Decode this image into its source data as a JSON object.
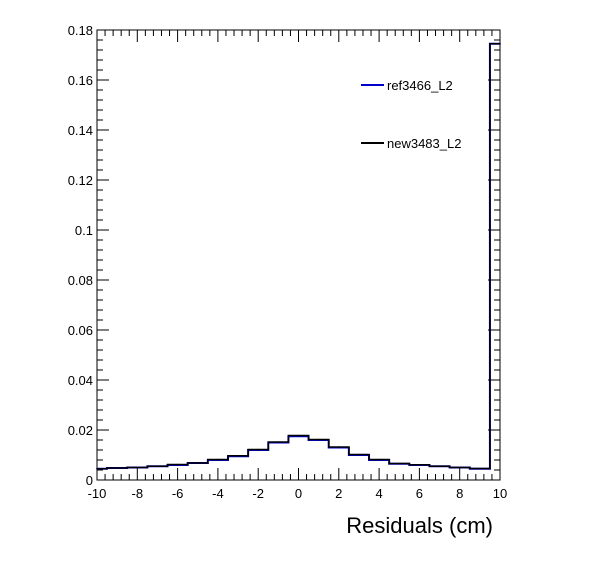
{
  "chart_data": {
    "type": "line",
    "title": "",
    "xlabel": "Residuals (cm)",
    "ylabel": "",
    "xlim": [
      -10,
      10
    ],
    "ylim": [
      0,
      0.18
    ],
    "xticks": [
      -10,
      -8,
      -6,
      -4,
      -2,
      0,
      2,
      4,
      6,
      8,
      10
    ],
    "yticks": [
      0,
      0.02,
      0.04,
      0.06,
      0.08,
      0.1,
      0.12,
      0.14,
      0.16,
      0.18
    ],
    "xtick_labels": [
      "-10",
      "-8",
      "-6",
      "-4",
      "-2",
      "0",
      "2",
      "4",
      "6",
      "8",
      "10"
    ],
    "ytick_labels": [
      "0",
      "0.02",
      "0.04",
      "0.06",
      "0.08",
      "0.1",
      "0.12",
      "0.14",
      "0.16",
      "0.18"
    ],
    "grid": false,
    "legend_position": "top-right",
    "x": [
      -10,
      -9,
      -8,
      -7,
      -6,
      -5,
      -4,
      -3,
      -2,
      -1,
      0,
      1,
      2,
      3,
      4,
      5,
      6,
      7,
      8,
      9,
      10
    ],
    "series": [
      {
        "name": "ref3466_L2",
        "color": "#0000cc",
        "values": [
          0.0045,
          0.0048,
          0.005,
          0.0055,
          0.006,
          0.0068,
          0.008,
          0.0095,
          0.012,
          0.015,
          0.0175,
          0.016,
          0.013,
          0.01,
          0.008,
          0.0065,
          0.006,
          0.0055,
          0.005,
          0.0045,
          0.1745
        ]
      },
      {
        "name": "new3483_L2",
        "color": "#000000",
        "values": [
          0.0045,
          0.0048,
          0.005,
          0.0055,
          0.0062,
          0.0068,
          0.0082,
          0.0097,
          0.0122,
          0.0152,
          0.0178,
          0.0162,
          0.0132,
          0.0102,
          0.0082,
          0.0066,
          0.0061,
          0.0055,
          0.005,
          0.0046,
          0.1745
        ]
      }
    ]
  }
}
